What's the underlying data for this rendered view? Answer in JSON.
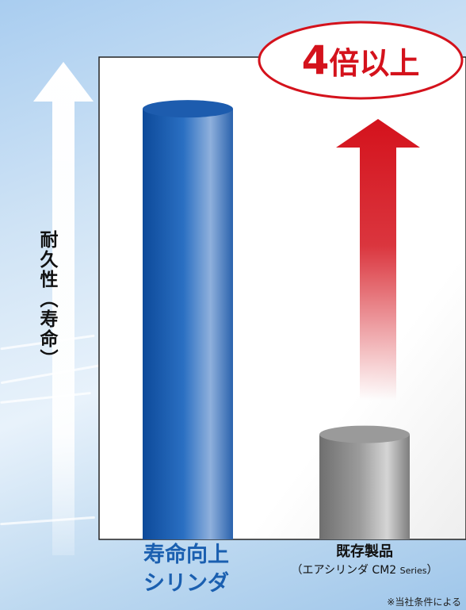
{
  "chart_data": {
    "type": "bar",
    "categories": [
      "寿命向上シリンダ",
      "既存製品"
    ],
    "values": [
      4.1,
      1.0
    ],
    "ylabel": "耐久性（寿命）",
    "ylim": [
      0,
      5
    ],
    "grid": false,
    "legend": "none",
    "annotation": {
      "badge_prefix": "4",
      "badge_text": "倍以上"
    },
    "category_labels": {
      "a_line1": "寿命向上",
      "a_line2": "シリンダ",
      "b_main": "既存製品",
      "b_sub_prefix": "（エアシリンダ CM2 ",
      "b_sub_series": "Series",
      "b_sub_suffix": "）"
    },
    "colors": {
      "bar_a": "#1a5fb0",
      "bar_b": "#8a8a8a",
      "arrow": "#d4121c"
    }
  },
  "footnote": "※当社条件による"
}
